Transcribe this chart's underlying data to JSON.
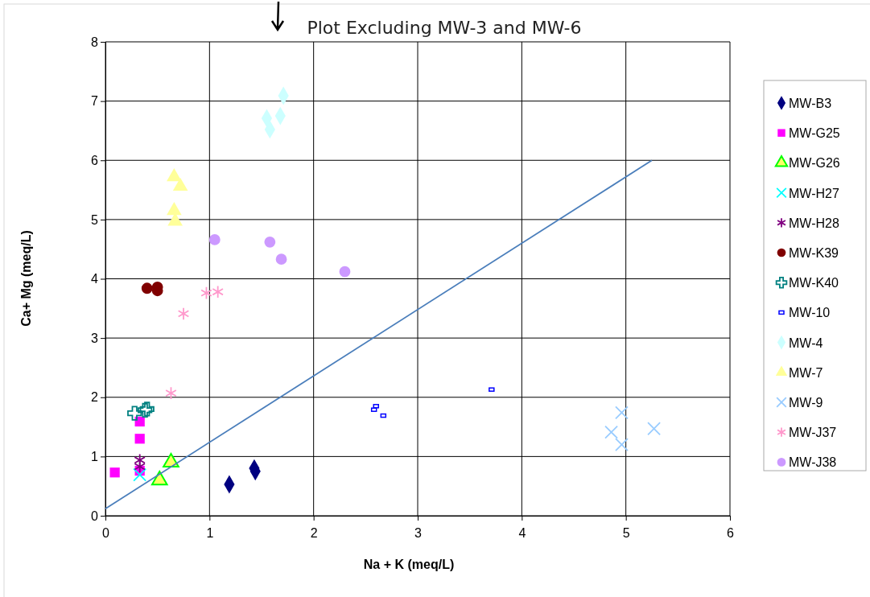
{
  "chart_data": {
    "type": "scatter",
    "title": "Plot Excluding MW-3 and MW-6",
    "xlabel": "Na + K (meq/L)",
    "ylabel": "Ca+ Mg (meq/L)",
    "xlim": [
      0,
      6
    ],
    "ylim": [
      0,
      8
    ],
    "xticks": [
      0,
      1,
      2,
      3,
      4,
      5,
      6
    ],
    "yticks": [
      0,
      1,
      2,
      3,
      4,
      5,
      6,
      7,
      8
    ],
    "grid": true,
    "legend": "right",
    "series": [
      {
        "name": "MW-B3",
        "color": "#000080",
        "marker": "diamond",
        "x": [
          1.19,
          1.43,
          1.44
        ],
        "values": [
          0.53,
          0.8,
          0.75
        ]
      },
      {
        "name": "MW-G25",
        "color": "#ff00ff",
        "marker": "square",
        "x": [
          0.09,
          0.33,
          0.33,
          0.33
        ],
        "values": [
          0.73,
          1.59,
          1.3,
          0.76
        ]
      },
      {
        "name": "MW-G26",
        "color": "#00ff00",
        "marker": "triangle",
        "x": [
          0.63,
          0.52
        ],
        "values": [
          0.9,
          0.6
        ]
      },
      {
        "name": "MW-H27",
        "color": "#00ffff",
        "x": [
          0.33
        ],
        "values": [
          0.69
        ]
      },
      {
        "name": "MW-H28",
        "color": "#800080",
        "marker": "cross",
        "x": [
          0.33,
          0.33
        ],
        "values": [
          0.94,
          0.83
        ]
      },
      {
        "name": "MW-K39",
        "color": "#800000",
        "marker": "circle",
        "x": [
          0.4,
          0.5,
          0.5
        ],
        "values": [
          3.84,
          3.86,
          3.8
        ]
      },
      {
        "name": "MW-K40",
        "color": "#008080",
        "marker": "plus",
        "x": [
          0.28,
          0.38,
          0.4
        ],
        "values": [
          1.73,
          1.78,
          1.8
        ]
      },
      {
        "name": "MW-10",
        "color": "#0000ff",
        "marker": "square",
        "x": [
          2.58,
          2.6,
          2.67,
          3.71
        ],
        "values": [
          1.79,
          1.85,
          1.69,
          2.13
        ]
      },
      {
        "name": "MW-4",
        "color": "#ccffff",
        "marker": "diamond",
        "x": [
          1.71,
          1.55,
          1.68,
          1.58
        ],
        "values": [
          7.09,
          6.71,
          6.75,
          6.52
        ]
      },
      {
        "name": "MW-7",
        "color": "#ffff99",
        "marker": "triangle",
        "x": [
          0.66,
          0.72,
          0.66,
          0.67
        ],
        "values": [
          5.72,
          5.56,
          5.15,
          4.97
        ]
      },
      {
        "name": "MW-9",
        "color": "#99ccff",
        "x": [
          4.96,
          4.86,
          4.96,
          5.27
        ],
        "values": [
          1.74,
          1.41,
          1.2,
          1.47
        ]
      },
      {
        "name": "MW-J37",
        "color": "#ff99cc",
        "marker": "cross",
        "x": [
          0.97,
          1.08,
          0.75,
          0.63
        ],
        "values": [
          3.76,
          3.78,
          3.41,
          2.07
        ]
      },
      {
        "name": "MW-J38",
        "color": "#cc99ff",
        "marker": "circle",
        "x": [
          1.05,
          1.58,
          1.69,
          2.3
        ],
        "values": [
          4.66,
          4.62,
          4.33,
          4.12
        ]
      },
      {
        "type": "line",
        "color": "#4a7ebb",
        "x": [
          0,
          5.25
        ],
        "values": [
          0.12,
          6
        ]
      }
    ]
  }
}
